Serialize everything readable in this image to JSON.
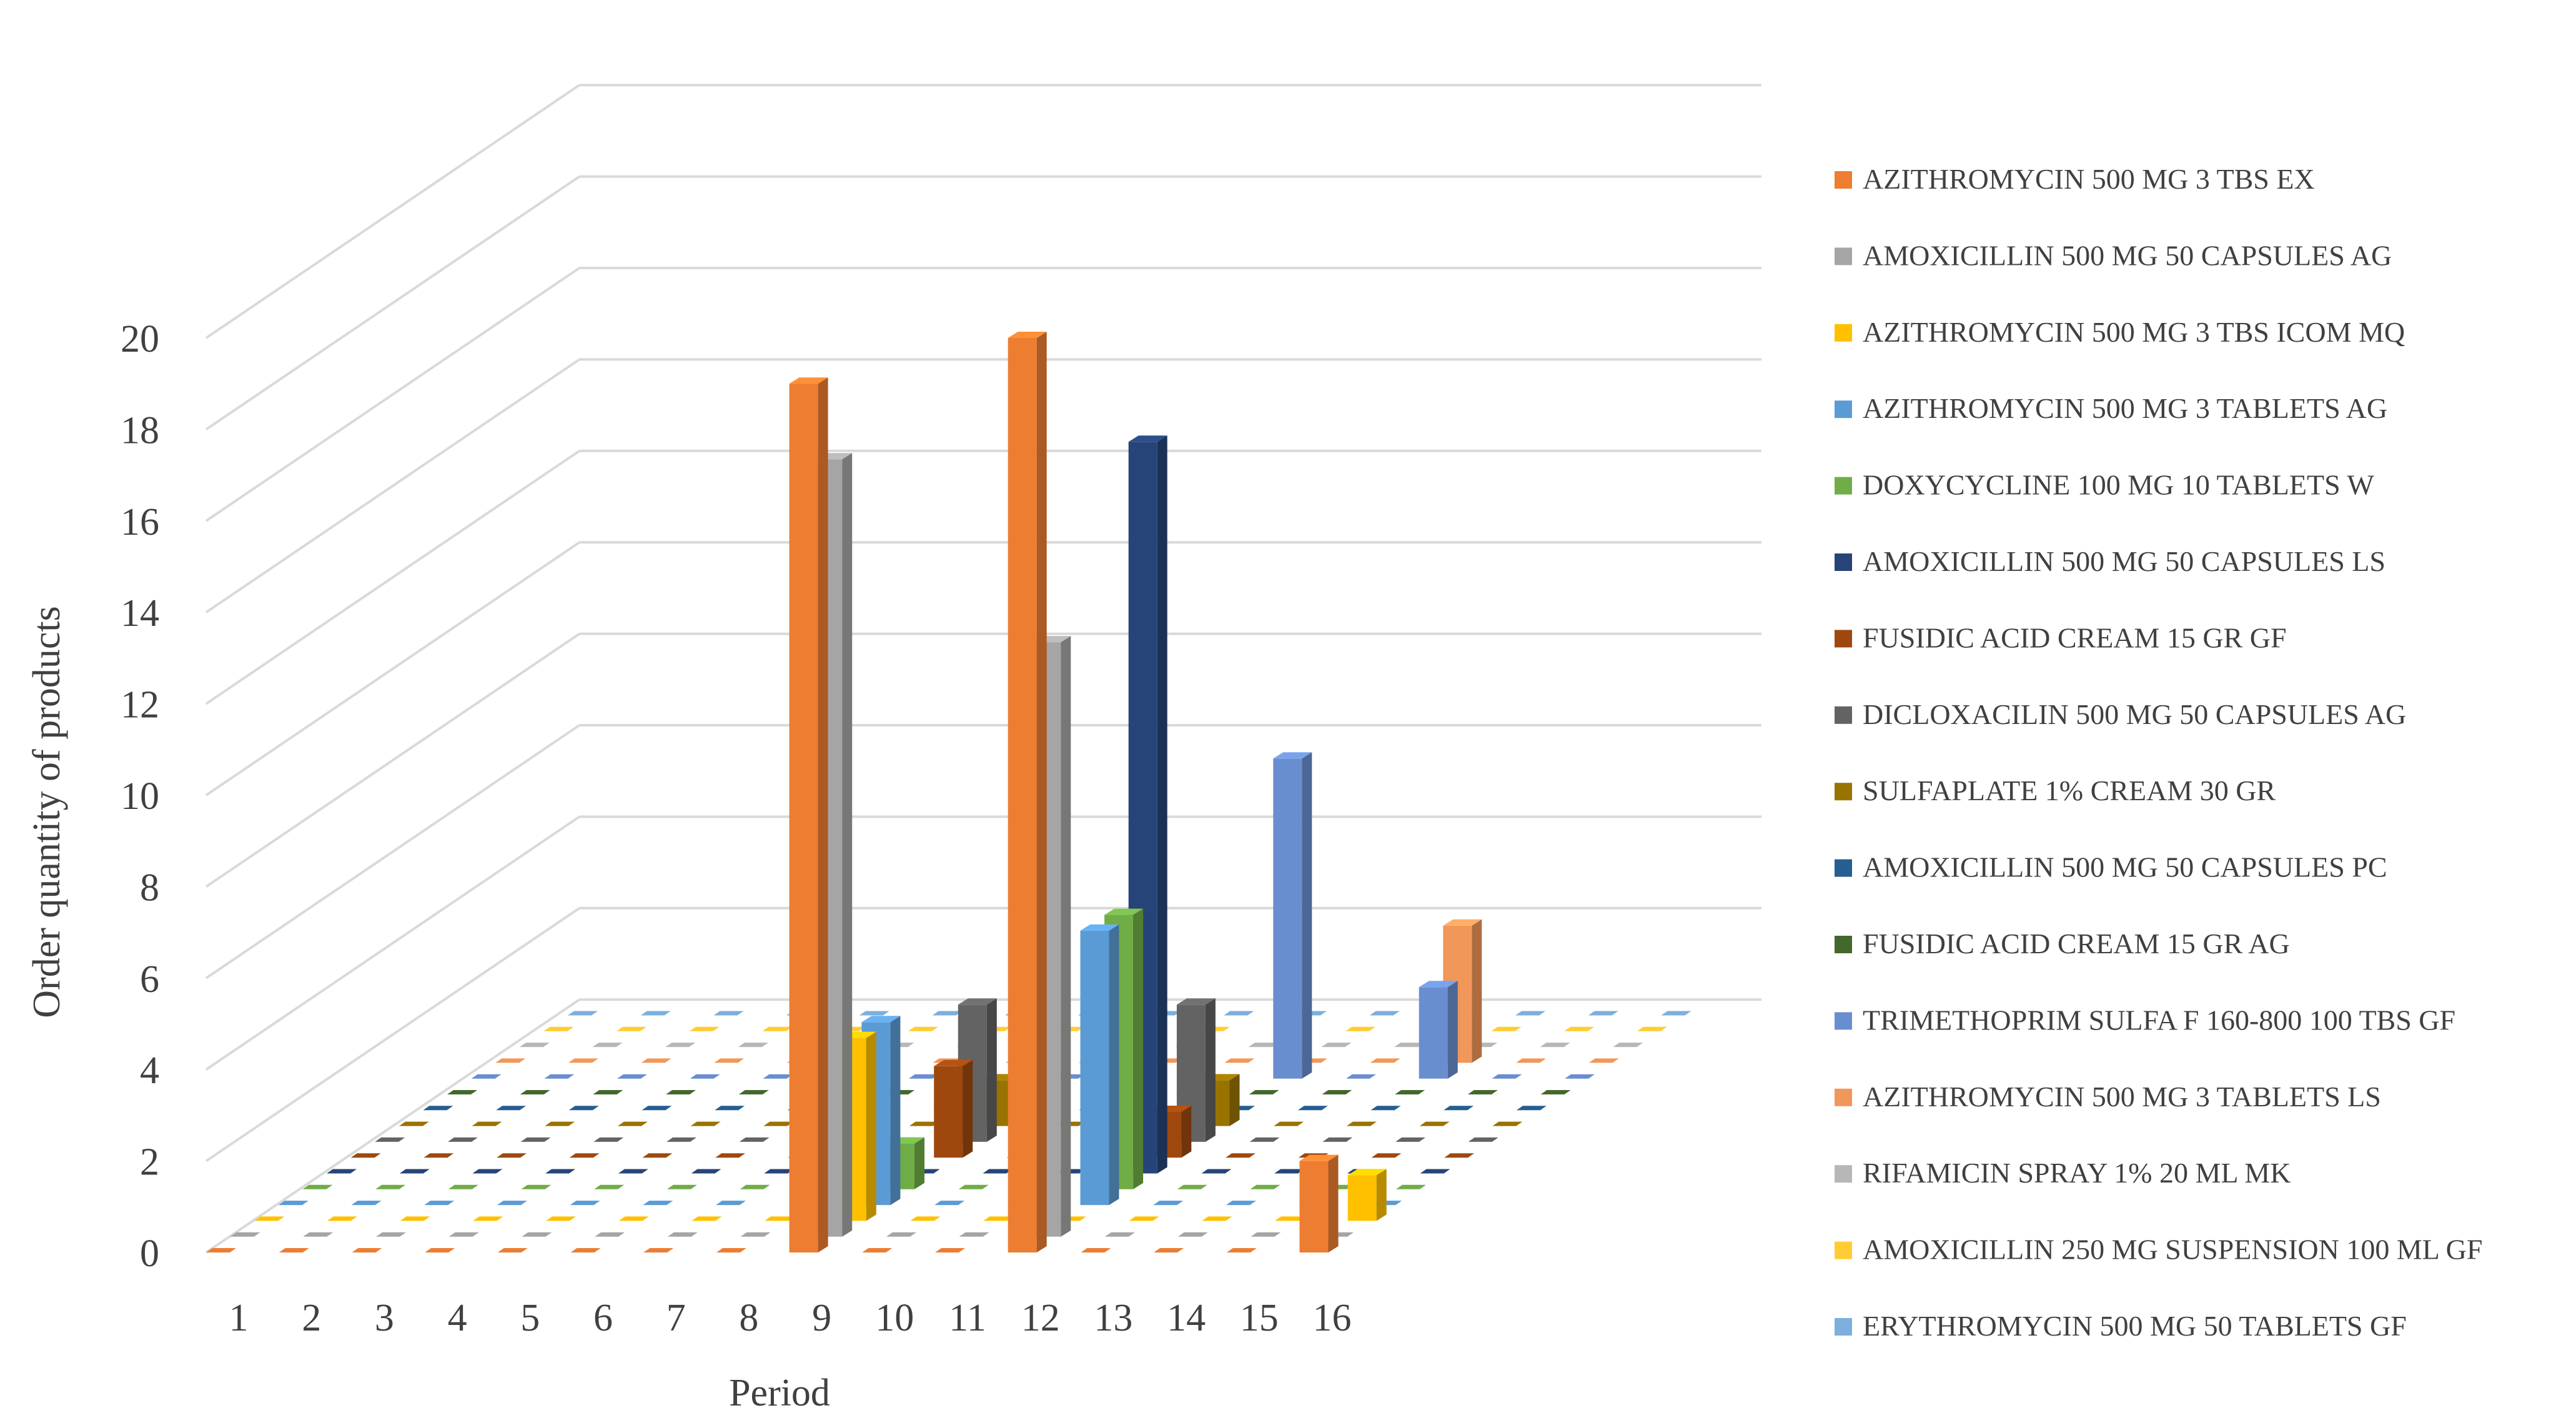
{
  "chart_data": {
    "type": "bar",
    "subtype": "3d-column",
    "title": "",
    "xlabel": "Period",
    "ylabel": "Order quantity of products",
    "ylim": [
      0,
      20
    ],
    "yticks": [
      0,
      2,
      4,
      6,
      8,
      10,
      12,
      14,
      16,
      18,
      20
    ],
    "categories": [
      "1",
      "2",
      "3",
      "4",
      "5",
      "6",
      "7",
      "8",
      "9",
      "10",
      "11",
      "12",
      "13",
      "14",
      "15",
      "16"
    ],
    "grid": true,
    "legend_position": "right",
    "series": [
      {
        "name": "AZITHROMYCIN 500 MG 3 TBS EX",
        "color": "#ED7D31",
        "values": [
          0,
          0,
          0,
          0,
          0,
          0,
          0,
          0,
          19,
          0,
          0,
          20,
          0,
          0,
          0,
          2
        ]
      },
      {
        "name": "AMOXICILLIN 500 MG 50 CAPSULES AG",
        "color": "#A5A5A5",
        "values": [
          0,
          0,
          0,
          0,
          0,
          0,
          0,
          0,
          17,
          0,
          0,
          13,
          0,
          0,
          0,
          0
        ]
      },
      {
        "name": "AZITHROMYCIN 500 MG 3 TBS ICOM MQ",
        "color": "#FFC000",
        "values": [
          0,
          0,
          0,
          0,
          0,
          0,
          0,
          0,
          4,
          0,
          0,
          0,
          0,
          0,
          0,
          1
        ]
      },
      {
        "name": "AZITHROMYCIN 500 MG 3 TABLETS AG",
        "color": "#5B9BD5",
        "values": [
          0,
          0,
          0,
          0,
          0,
          0,
          0,
          0,
          4,
          0,
          0,
          6,
          0,
          0,
          0,
          0
        ]
      },
      {
        "name": "DOXYCYCLINE 100 MG 10 TABLETS W",
        "color": "#70AD47",
        "values": [
          0,
          0,
          0,
          0,
          0,
          0,
          0,
          0,
          1,
          0,
          0,
          6,
          0,
          0,
          0,
          0
        ]
      },
      {
        "name": "AMOXICILLIN 500 MG 50 CAPSULES LS",
        "color": "#264478",
        "values": [
          0,
          0,
          0,
          0,
          0,
          0,
          0,
          0,
          0,
          0,
          0,
          16,
          0,
          0,
          0,
          0
        ]
      },
      {
        "name": "FUSIDIC ACID CREAM 15 GR GF",
        "color": "#9E480E",
        "values": [
          0,
          0,
          0,
          0,
          0,
          0,
          0,
          0,
          2,
          0,
          0,
          1,
          0,
          0,
          0,
          0
        ]
      },
      {
        "name": "DICLOXACILIN 500 MG 50 CAPSULES AG",
        "color": "#636363",
        "values": [
          0,
          0,
          0,
          0,
          0,
          0,
          0,
          0,
          3,
          0,
          0,
          3,
          0,
          0,
          0,
          0
        ]
      },
      {
        "name": "SULFAPLATE 1% CREAM 30 GR",
        "color": "#997300",
        "values": [
          0,
          0,
          0,
          0,
          0,
          0,
          0,
          0,
          1,
          0,
          0,
          1,
          0,
          0,
          0,
          0
        ]
      },
      {
        "name": "AMOXICILLIN 500 MG 50 CAPSULES PC",
        "color": "#255E91",
        "values": [
          0,
          0,
          0,
          0,
          0,
          0,
          0,
          0,
          0,
          0,
          0,
          0,
          0,
          0,
          0,
          0
        ]
      },
      {
        "name": "FUSIDIC ACID CREAM 15 GR AG",
        "color": "#43682B",
        "values": [
          0,
          0,
          0,
          0,
          0,
          0,
          0,
          0,
          0,
          0,
          0,
          0,
          0,
          0,
          0,
          0
        ]
      },
      {
        "name": "TRIMETHOPRIM SULFA F 160-800 100 TBS GF",
        "color": "#698ED0",
        "values": [
          0,
          0,
          0,
          0,
          0,
          0,
          0,
          0,
          0,
          0,
          0,
          7,
          0,
          2,
          0,
          0
        ]
      },
      {
        "name": "AZITHROMYCIN 500 MG 3 TABLETS LS",
        "color": "#F1975A",
        "values": [
          0,
          0,
          0,
          0,
          0,
          0,
          0,
          0,
          0,
          0,
          0,
          0,
          0,
          3,
          0,
          0
        ]
      },
      {
        "name": "RIFAMICIN SPRAY 1% 20 ML MK",
        "color": "#B7B7B7",
        "values": [
          0,
          0,
          0,
          0,
          0,
          0,
          0,
          0,
          0,
          0,
          0,
          0,
          0,
          0,
          0,
          0
        ]
      },
      {
        "name": "AMOXICILLIN 250 MG SUSPENSION 100 ML GF",
        "color": "#FFCD33",
        "values": [
          0,
          0,
          0,
          0,
          0,
          0,
          0,
          0,
          0,
          0,
          0,
          0,
          0,
          0,
          0,
          0
        ]
      },
      {
        "name": "ERYTHROMYCIN 500 MG 50 TABLETS GF",
        "color": "#7CAFDD",
        "values": [
          0,
          0,
          0,
          0,
          0,
          0,
          0,
          0,
          0,
          0,
          0,
          0,
          0,
          0,
          0,
          0
        ]
      }
    ]
  }
}
